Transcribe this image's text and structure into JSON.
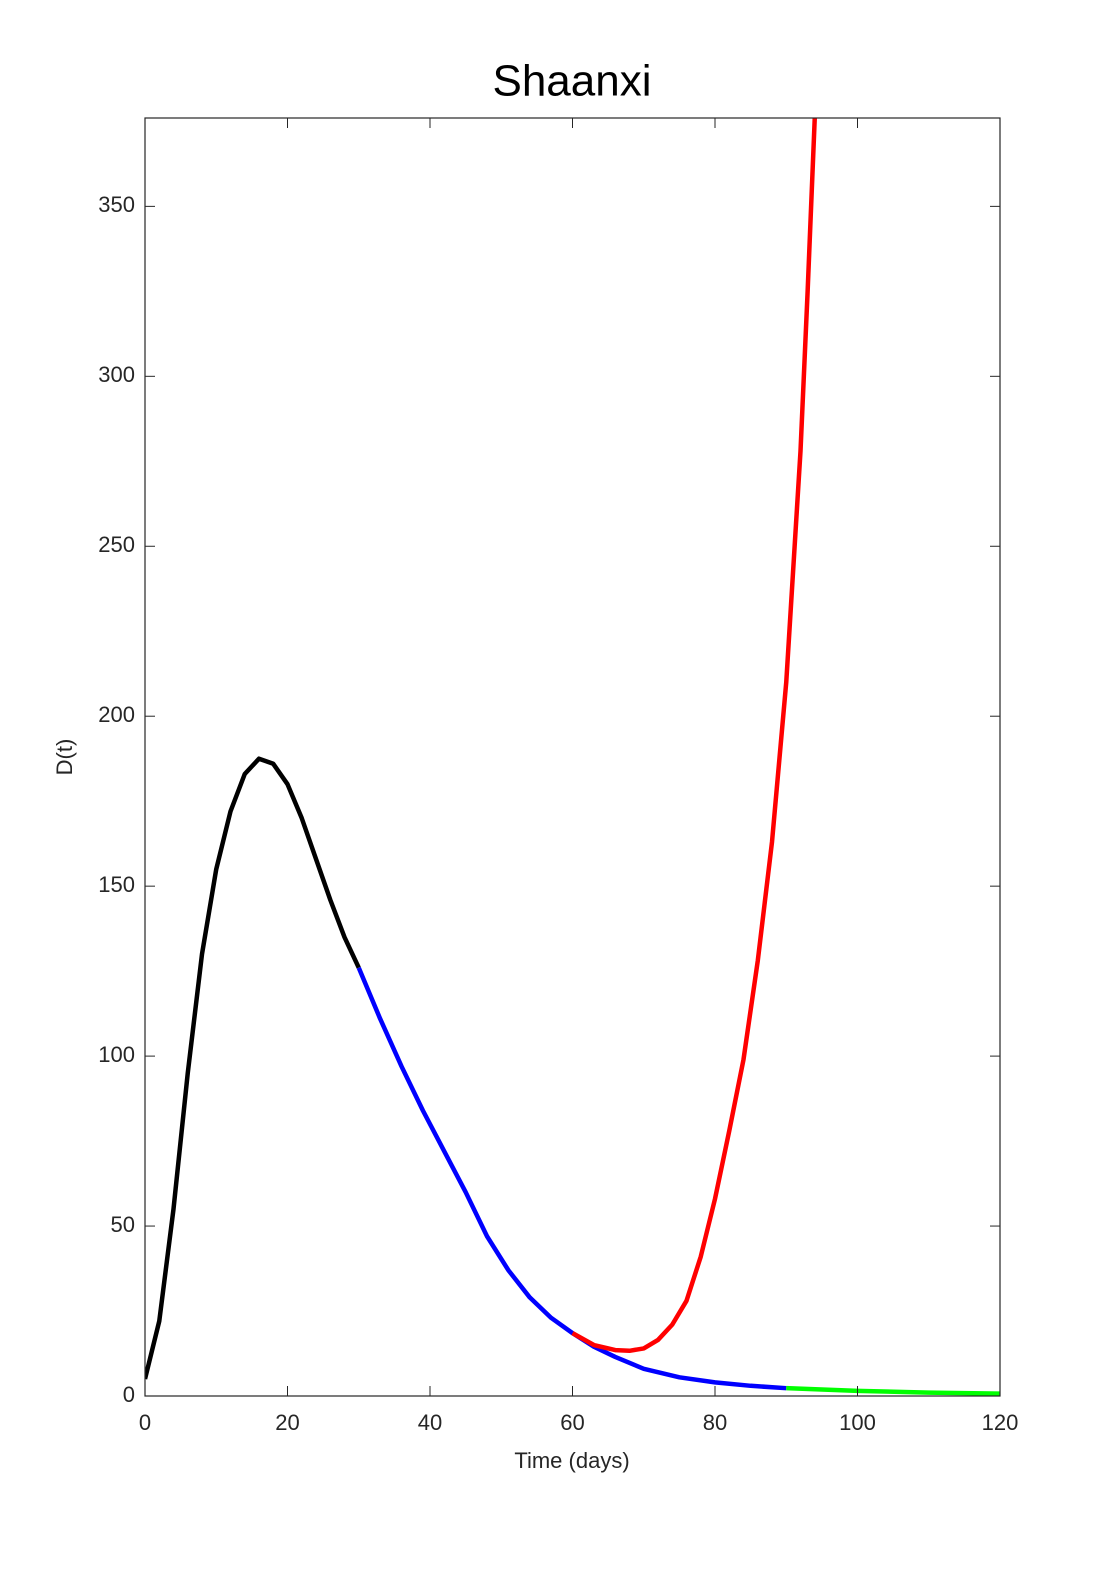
{
  "chart_data": {
    "type": "line",
    "title": "Shaanxi",
    "xlabel": "Time (days)",
    "ylabel": "D(t)",
    "xlim": [
      0,
      120
    ],
    "xticks": [
      0,
      20,
      40,
      60,
      80,
      100,
      120
    ],
    "ylim": [
      0,
      376
    ],
    "yticks": [
      0,
      50,
      100,
      150,
      200,
      250,
      300,
      350
    ],
    "series": [
      {
        "color": "#000000",
        "x": [
          0,
          2,
          4,
          6,
          8,
          10,
          12,
          14,
          16,
          18,
          20,
          22,
          24,
          26,
          28,
          30
        ],
        "values": [
          5,
          22,
          55,
          95,
          130,
          155,
          172,
          183,
          187.5,
          186,
          180,
          170,
          158,
          146,
          135,
          126
        ]
      },
      {
        "color": "#0000ff",
        "x": [
          30,
          33,
          36,
          39,
          42,
          45,
          48,
          51,
          54,
          57,
          60,
          63,
          66,
          70,
          75,
          80,
          85,
          90
        ],
        "values": [
          126,
          111,
          97,
          84,
          72,
          60,
          47,
          37,
          29,
          23,
          18.5,
          14.5,
          11.5,
          8,
          5.5,
          4,
          3,
          2.3
        ]
      },
      {
        "color": "#ff0000",
        "x": [
          60,
          63,
          66,
          68,
          70,
          72,
          74,
          76,
          78,
          80,
          82,
          84,
          86,
          88,
          90,
          92,
          93,
          94
        ],
        "values": [
          18.5,
          15,
          13.5,
          13.3,
          14,
          16.5,
          21,
          28,
          41,
          58,
          78,
          99,
          128,
          163,
          210,
          278,
          325,
          376
        ]
      },
      {
        "color": "#00ff00",
        "x": [
          90,
          100,
          110,
          120
        ],
        "values": [
          2.3,
          1.5,
          1,
          0.7
        ]
      }
    ]
  }
}
